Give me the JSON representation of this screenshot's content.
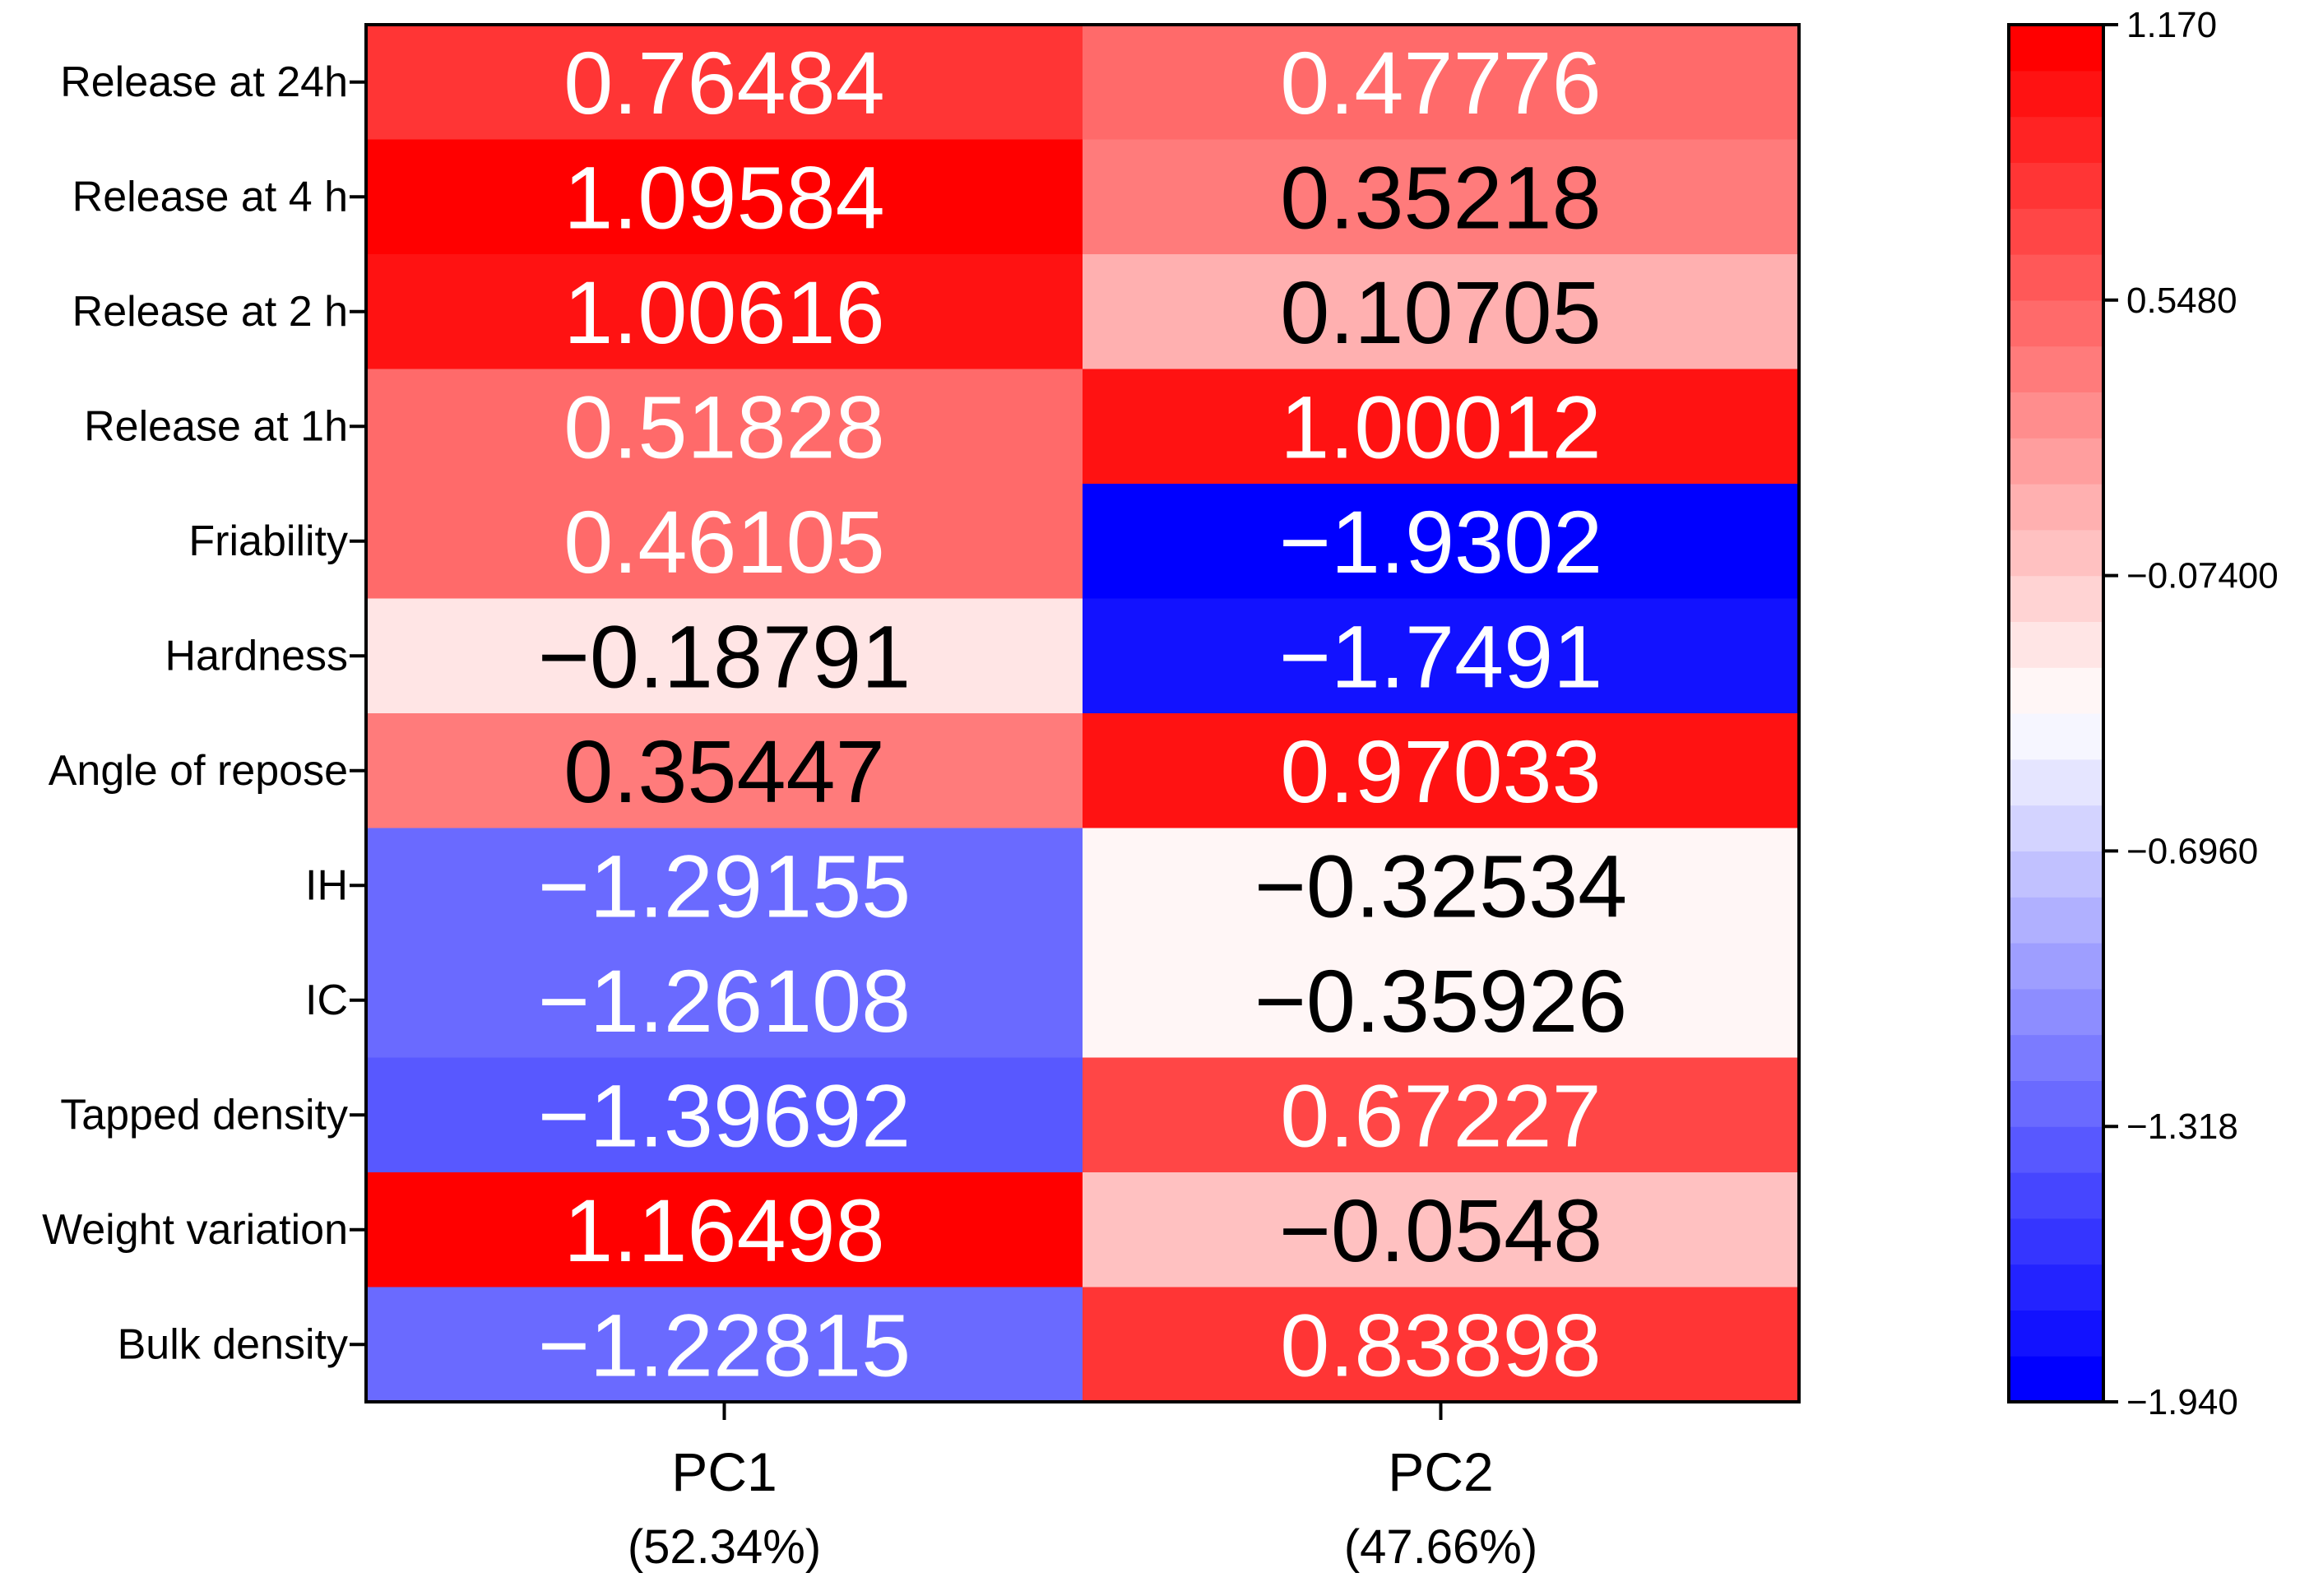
{
  "chart_data": {
    "type": "heatmap",
    "rows": [
      "Release at 24h",
      "Release at 4 h",
      "Release at 2 h",
      "Release at 1h",
      "Friability",
      "Hardness",
      "Angle of repose",
      "IH",
      "IC",
      "Tapped density",
      "Weight variation",
      "Bulk density"
    ],
    "columns": [
      {
        "label": "PC1",
        "sublabel": "(52.34%)"
      },
      {
        "label": "PC2",
        "sublabel": "(47.66%)"
      }
    ],
    "cells": [
      [
        "0.76484",
        "0.47776"
      ],
      [
        "1.09584",
        "0.35218"
      ],
      [
        "1.00616",
        "0.10705"
      ],
      [
        "0.51828",
        "1.00012"
      ],
      [
        "0.46105",
        "−1.9302"
      ],
      [
        "−0.18791",
        "−1.7491"
      ],
      [
        "0.35447",
        "0.97033"
      ],
      [
        "−1.29155",
        "−0.32534"
      ],
      [
        "−1.26108",
        "−0.35926"
      ],
      [
        "−1.39692",
        "0.67227"
      ],
      [
        "1.16498",
        "−0.0548"
      ],
      [
        "−1.22815",
        "0.83898"
      ]
    ],
    "values": [
      [
        0.76484,
        0.47776
      ],
      [
        1.09584,
        0.35218
      ],
      [
        1.00616,
        0.10705
      ],
      [
        0.51828,
        1.00012
      ],
      [
        0.46105,
        -1.9302
      ],
      [
        -0.18791,
        -1.7491
      ],
      [
        0.35447,
        0.97033
      ],
      [
        -1.29155,
        -0.32534
      ],
      [
        -1.26108,
        -0.35926
      ],
      [
        -1.39692,
        0.67227
      ],
      [
        1.16498,
        -0.0548
      ],
      [
        -1.22815,
        0.83898
      ]
    ],
    "colorbar": {
      "min": -1.94,
      "max": 1.17,
      "levels": 30,
      "ticks": [
        {
          "value": 1.17,
          "label": "1.170"
        },
        {
          "value": 0.548,
          "label": "0.5480"
        },
        {
          "value": -0.074,
          "label": "−0.07400"
        },
        {
          "value": -0.696,
          "label": "−0.6960"
        },
        {
          "value": -1.318,
          "label": "−1.318"
        },
        {
          "value": -1.94,
          "label": "−1.940"
        }
      ],
      "low_color": "#0000ff",
      "mid_color": "#ffffff",
      "high_color": "#ff0000"
    },
    "text_colors": {
      "on_strong": "#ffffff",
      "on_light": "#000000"
    }
  }
}
